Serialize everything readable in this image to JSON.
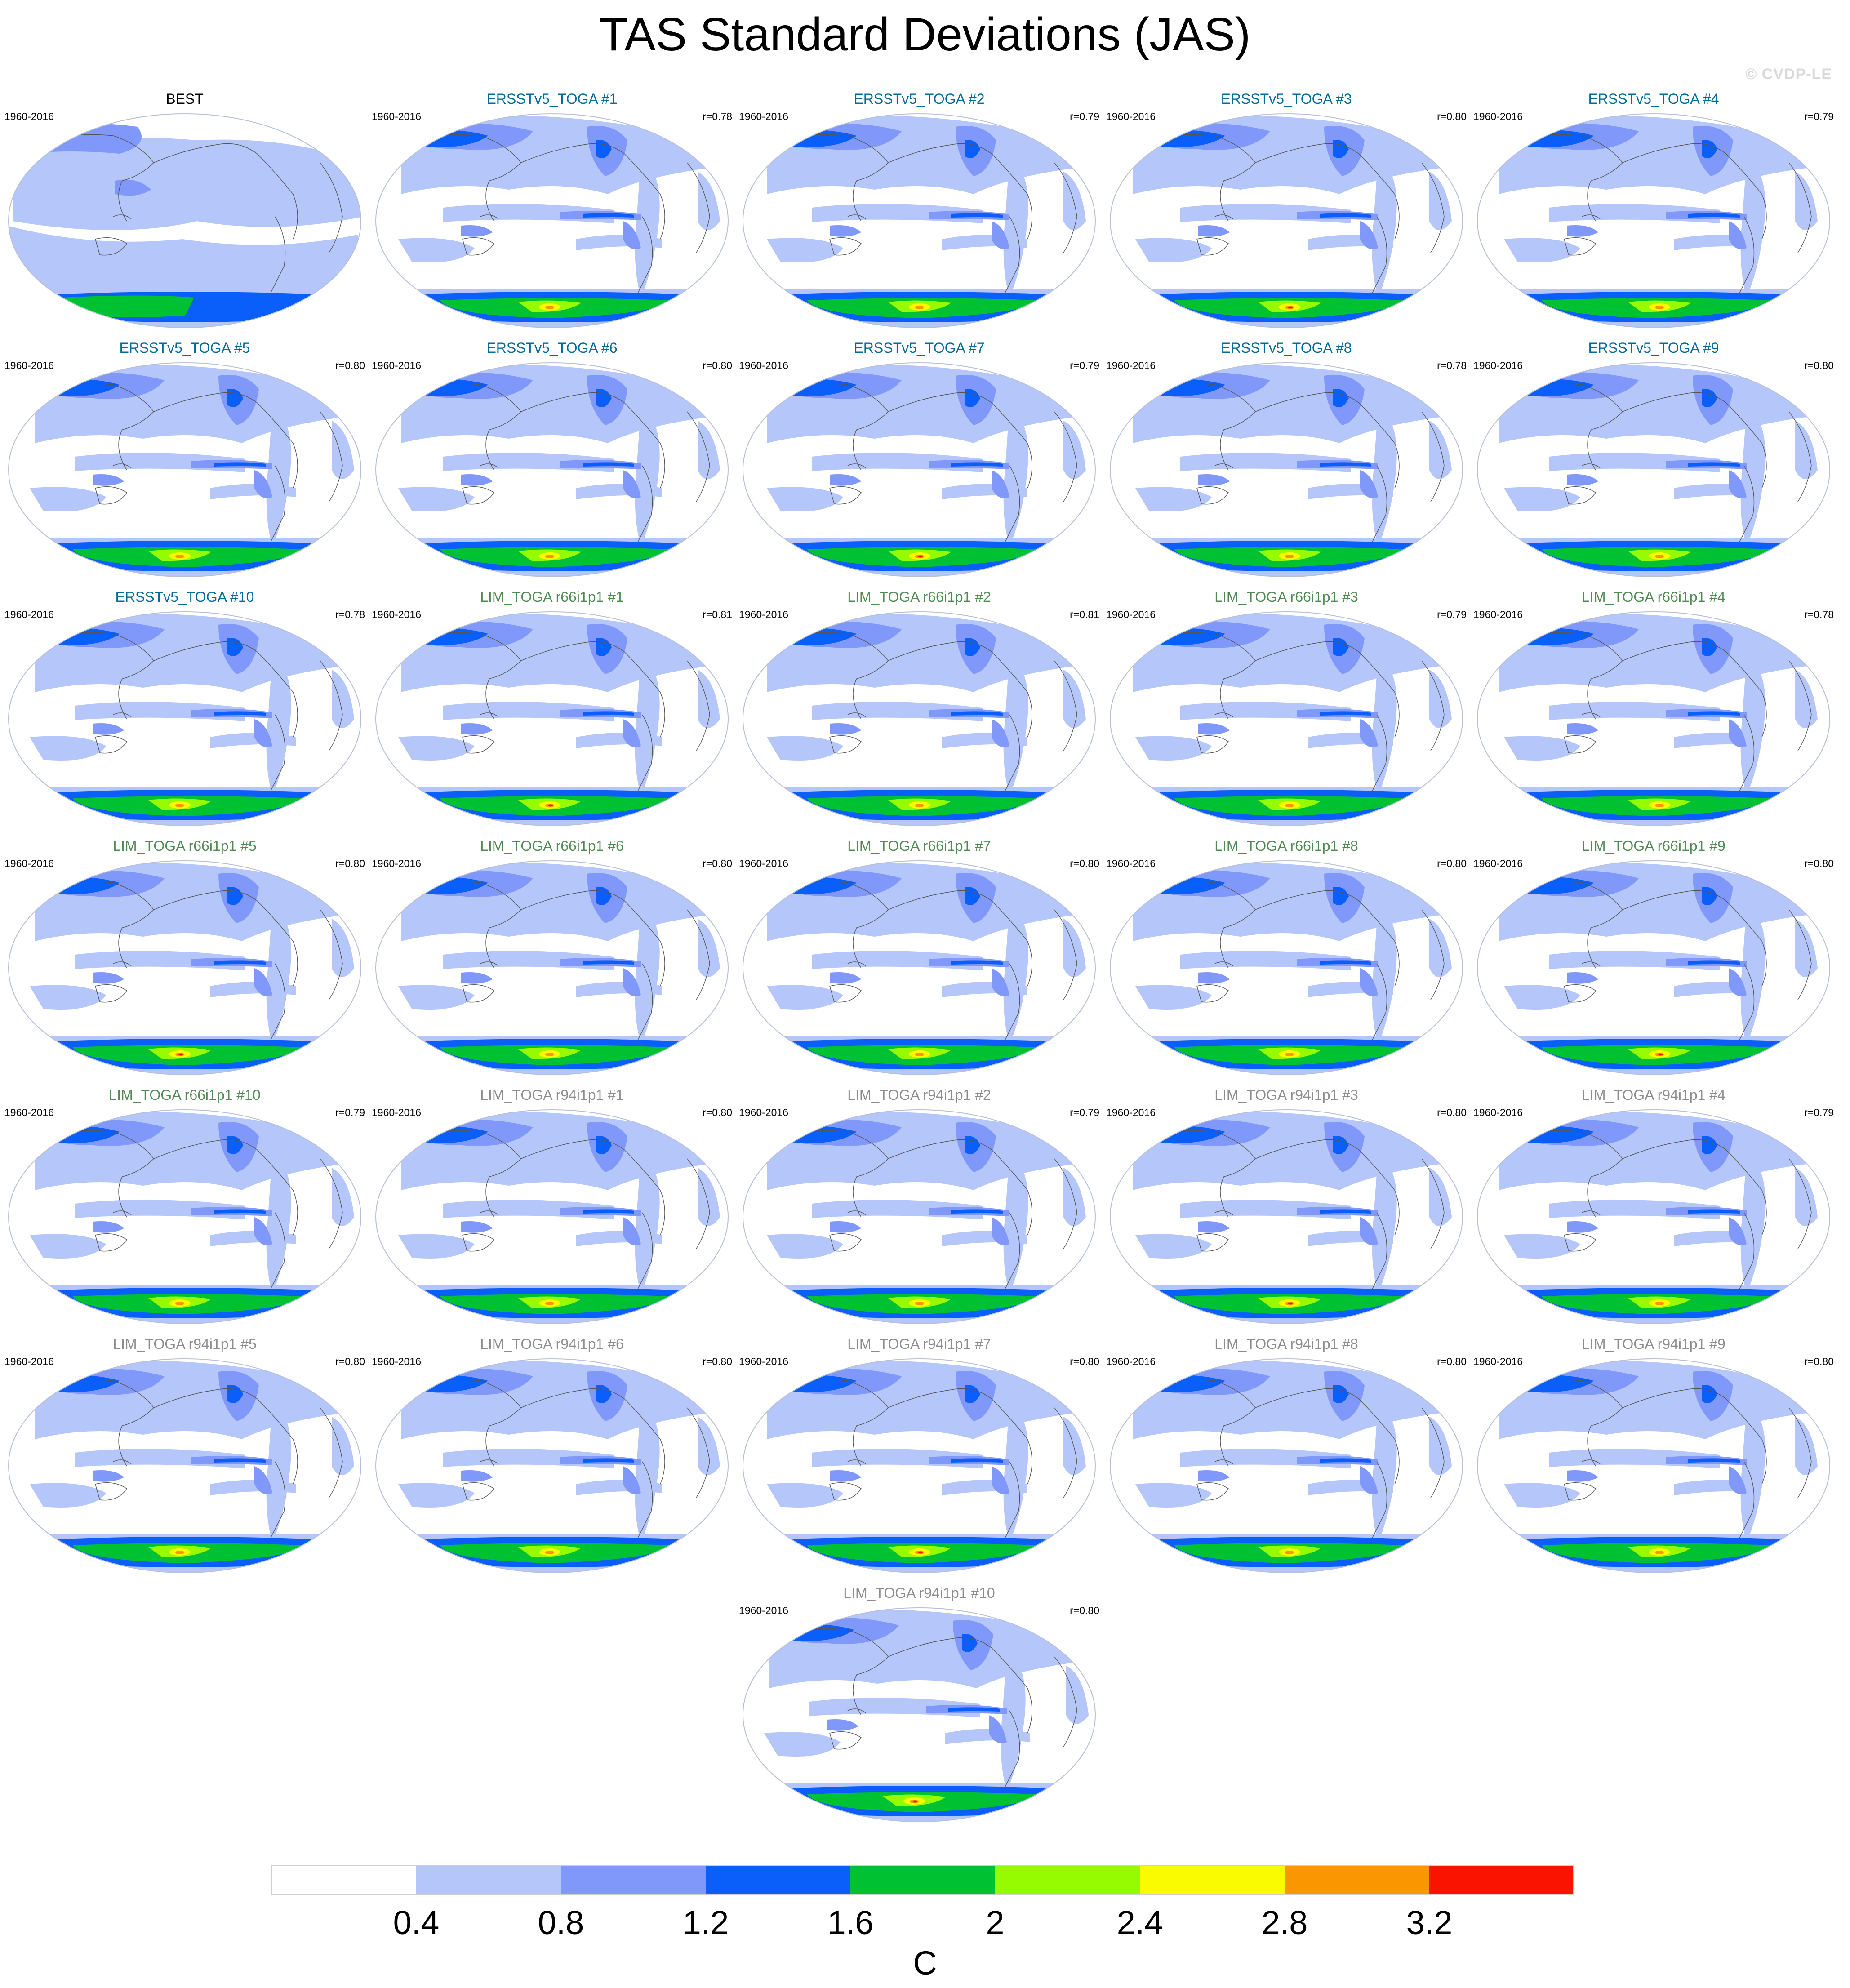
{
  "title": "TAS Standard Deviations (JAS)",
  "watermark": "© CVDP-LE",
  "period": "1960-2016",
  "colors": {
    "obs_title": "#000000",
    "ersst_title": "#006b99",
    "lim66_title": "#4f8a52",
    "lim94_title": "#8c8c8c",
    "map_outline": "#b8c0d8",
    "coastline": "#555555"
  },
  "panels": [
    {
      "title": "BEST",
      "r": "",
      "group": "obs"
    },
    {
      "title": "ERSSTv5_TOGA #1",
      "r": "r=0.78",
      "group": "ersst"
    },
    {
      "title": "ERSSTv5_TOGA #2",
      "r": "r=0.79",
      "group": "ersst"
    },
    {
      "title": "ERSSTv5_TOGA #3",
      "r": "r=0.80",
      "group": "ersst"
    },
    {
      "title": "ERSSTv5_TOGA #4",
      "r": "r=0.79",
      "group": "ersst"
    },
    {
      "title": "ERSSTv5_TOGA #5",
      "r": "r=0.80",
      "group": "ersst"
    },
    {
      "title": "ERSSTv5_TOGA #6",
      "r": "r=0.80",
      "group": "ersst"
    },
    {
      "title": "ERSSTv5_TOGA #7",
      "r": "r=0.79",
      "group": "ersst"
    },
    {
      "title": "ERSSTv5_TOGA #8",
      "r": "r=0.78",
      "group": "ersst"
    },
    {
      "title": "ERSSTv5_TOGA #9",
      "r": "r=0.80",
      "group": "ersst"
    },
    {
      "title": "ERSSTv5_TOGA #10",
      "r": "r=0.78",
      "group": "ersst"
    },
    {
      "title": "LIM_TOGA r66i1p1 #1",
      "r": "r=0.81",
      "group": "lim66"
    },
    {
      "title": "LIM_TOGA r66i1p1 #2",
      "r": "r=0.81",
      "group": "lim66"
    },
    {
      "title": "LIM_TOGA r66i1p1 #3",
      "r": "r=0.79",
      "group": "lim66"
    },
    {
      "title": "LIM_TOGA r66i1p1 #4",
      "r": "r=0.78",
      "group": "lim66"
    },
    {
      "title": "LIM_TOGA r66i1p1 #5",
      "r": "r=0.80",
      "group": "lim66"
    },
    {
      "title": "LIM_TOGA r66i1p1 #6",
      "r": "r=0.80",
      "group": "lim66"
    },
    {
      "title": "LIM_TOGA r66i1p1 #7",
      "r": "r=0.80",
      "group": "lim66"
    },
    {
      "title": "LIM_TOGA r66i1p1 #8",
      "r": "r=0.80",
      "group": "lim66"
    },
    {
      "title": "LIM_TOGA r66i1p1 #9",
      "r": "r=0.80",
      "group": "lim66"
    },
    {
      "title": "LIM_TOGA r66i1p1 #10",
      "r": "r=0.79",
      "group": "lim66"
    },
    {
      "title": "LIM_TOGA r94i1p1 #1",
      "r": "r=0.80",
      "group": "lim94"
    },
    {
      "title": "LIM_TOGA r94i1p1 #2",
      "r": "r=0.79",
      "group": "lim94"
    },
    {
      "title": "LIM_TOGA r94i1p1 #3",
      "r": "r=0.80",
      "group": "lim94"
    },
    {
      "title": "LIM_TOGA r94i1p1 #4",
      "r": "r=0.79",
      "group": "lim94"
    },
    {
      "title": "LIM_TOGA r94i1p1 #5",
      "r": "r=0.80",
      "group": "lim94"
    },
    {
      "title": "LIM_TOGA r94i1p1 #6",
      "r": "r=0.80",
      "group": "lim94"
    },
    {
      "title": "LIM_TOGA r94i1p1 #7",
      "r": "r=0.80",
      "group": "lim94"
    },
    {
      "title": "LIM_TOGA r94i1p1 #8",
      "r": "r=0.80",
      "group": "lim94"
    },
    {
      "title": "LIM_TOGA r94i1p1 #9",
      "r": "r=0.80",
      "group": "lim94"
    },
    {
      "title": "LIM_TOGA r94i1p1 #10",
      "r": "r=0.80",
      "group": "lim94"
    }
  ],
  "colorbar": {
    "colors": [
      "#ffffff",
      "#b4c6fa",
      "#8098fa",
      "#0a5efa",
      "#00c132",
      "#96fa00",
      "#fafa00",
      "#fa9600",
      "#fa1400"
    ],
    "labels": [
      "0.4",
      "0.8",
      "1.2",
      "1.6",
      "2",
      "2.4",
      "2.8",
      "3.2"
    ],
    "units": "C"
  }
}
